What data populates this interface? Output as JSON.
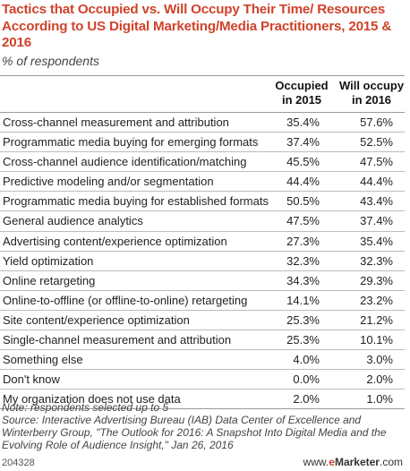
{
  "title": "Tactics that Occupied vs. Will Occupy Their Time/ Resources According to US Digital Marketing/Media Practitioners, 2015 & 2016",
  "subtitle": "% of respondents",
  "chart_data": {
    "type": "table",
    "columns": [
      "Occupied\nin 2015",
      "Will occupy\nin 2016"
    ],
    "rows": [
      {
        "label": "Cross-channel measurement and attribution",
        "v2015": "35.4%",
        "v2016": "57.6%"
      },
      {
        "label": "Programmatic media buying for emerging formats",
        "v2015": "37.4%",
        "v2016": "52.5%"
      },
      {
        "label": "Cross-channel audience identification/matching",
        "v2015": "45.5%",
        "v2016": "47.5%"
      },
      {
        "label": "Predictive modeling and/or segmentation",
        "v2015": "44.4%",
        "v2016": "44.4%"
      },
      {
        "label": "Programmatic media buying for established formats",
        "v2015": "50.5%",
        "v2016": "43.4%"
      },
      {
        "label": "General audience analytics",
        "v2015": "47.5%",
        "v2016": "37.4%"
      },
      {
        "label": "Advertising content/experience optimization",
        "v2015": "27.3%",
        "v2016": "35.4%"
      },
      {
        "label": "Yield optimization",
        "v2015": "32.3%",
        "v2016": "32.3%"
      },
      {
        "label": "Online retargeting",
        "v2015": "34.3%",
        "v2016": "29.3%"
      },
      {
        "label": "Online-to-offline (or offline-to-online) retargeting",
        "v2015": "14.1%",
        "v2016": "23.2%"
      },
      {
        "label": "Site content/experience optimization",
        "v2015": "25.3%",
        "v2016": "21.2%"
      },
      {
        "label": "Single-channel measurement and attribution",
        "v2015": "25.3%",
        "v2016": "10.1%"
      },
      {
        "label": "Something else",
        "v2015": "4.0%",
        "v2016": "3.0%"
      },
      {
        "label": "Don't know",
        "v2015": "0.0%",
        "v2016": "2.0%"
      },
      {
        "label": "My organization does not use data",
        "v2015": "2.0%",
        "v2016": "1.0%"
      }
    ]
  },
  "note": "Note: respondents selected up to 5\nSource: Interactive Advertising Bureau (IAB) Data Center of Excellence and Winterberry Group, \"The Outlook for 2016: A Snapshot Into Digital Media and the Evolving Role of Audience Insight,\" Jan 26, 2016",
  "footer_id": "204328",
  "logo": {
    "prefix": "www.",
    "e": "e",
    "brand": "Marketer",
    "suffix": ".com"
  },
  "colors": {
    "title": "#d0422a"
  }
}
